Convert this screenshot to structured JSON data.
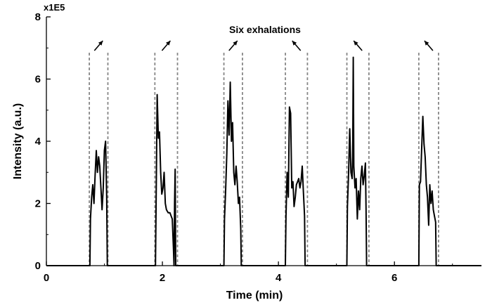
{
  "chart_data": {
    "type": "line",
    "title": "",
    "xlabel": "Time (min)",
    "ylabel": "Intensity (a.u.)",
    "y_multiplier_label": "x1E5",
    "annotation": "Six exhalations",
    "xlim": [
      0,
      7.5
    ],
    "ylim": [
      0,
      8
    ],
    "x_ticks": [
      0,
      2,
      4,
      6
    ],
    "y_ticks": [
      0,
      2,
      4,
      6,
      8
    ],
    "grid": false,
    "line_color": "#000000",
    "marker_color": "#888888",
    "exhalation_windows": [
      [
        0.74,
        1.06
      ],
      [
        1.87,
        2.26
      ],
      [
        3.06,
        3.38
      ],
      [
        4.12,
        4.5
      ],
      [
        5.18,
        5.56
      ],
      [
        6.42,
        6.76
      ]
    ],
    "arrow_directions": [
      "up-right",
      "up-right",
      "up-right",
      "up-left",
      "up-left",
      "up-left"
    ],
    "series": [
      {
        "values": [
          [
            0.0,
            0
          ],
          [
            0.75,
            0
          ],
          [
            0.76,
            1.5
          ],
          [
            0.78,
            2.2
          ],
          [
            0.8,
            2.6
          ],
          [
            0.82,
            2.0
          ],
          [
            0.84,
            2.9
          ],
          [
            0.86,
            3.7
          ],
          [
            0.88,
            3.0
          ],
          [
            0.9,
            3.5
          ],
          [
            0.92,
            3.2
          ],
          [
            0.94,
            2.5
          ],
          [
            0.96,
            1.8
          ],
          [
            0.98,
            2.5
          ],
          [
            1.0,
            3.7
          ],
          [
            1.02,
            4.0
          ],
          [
            1.04,
            2.2
          ],
          [
            1.05,
            0
          ],
          [
            1.88,
            0
          ],
          [
            1.89,
            1.8
          ],
          [
            1.9,
            3.6
          ],
          [
            1.91,
            5.5
          ],
          [
            1.93,
            4.1
          ],
          [
            1.95,
            4.3
          ],
          [
            1.97,
            3.0
          ],
          [
            1.99,
            2.3
          ],
          [
            2.01,
            2.5
          ],
          [
            2.03,
            3.0
          ],
          [
            2.05,
            2.0
          ],
          [
            2.07,
            1.8
          ],
          [
            2.1,
            1.7
          ],
          [
            2.13,
            1.7
          ],
          [
            2.15,
            1.6
          ],
          [
            2.17,
            1.5
          ],
          [
            2.19,
            0.6
          ],
          [
            2.2,
            0
          ],
          [
            2.21,
            2.0
          ],
          [
            2.22,
            3.1
          ],
          [
            2.23,
            0
          ],
          [
            3.06,
            0
          ],
          [
            3.07,
            1.5
          ],
          [
            3.09,
            2.4
          ],
          [
            3.11,
            3.6
          ],
          [
            3.13,
            5.3
          ],
          [
            3.15,
            4.2
          ],
          [
            3.17,
            5.9
          ],
          [
            3.19,
            4.0
          ],
          [
            3.21,
            4.6
          ],
          [
            3.23,
            3.0
          ],
          [
            3.25,
            2.6
          ],
          [
            3.27,
            3.2
          ],
          [
            3.29,
            2.7
          ],
          [
            3.31,
            2.0
          ],
          [
            3.33,
            2.2
          ],
          [
            3.35,
            1.2
          ],
          [
            3.36,
            0
          ],
          [
            4.12,
            0
          ],
          [
            4.13,
            1.6
          ],
          [
            4.15,
            3.0
          ],
          [
            4.17,
            2.2
          ],
          [
            4.19,
            5.1
          ],
          [
            4.21,
            4.9
          ],
          [
            4.23,
            2.5
          ],
          [
            4.25,
            2.7
          ],
          [
            4.27,
            1.9
          ],
          [
            4.29,
            2.2
          ],
          [
            4.31,
            2.6
          ],
          [
            4.33,
            2.7
          ],
          [
            4.35,
            2.8
          ],
          [
            4.37,
            2.5
          ],
          [
            4.39,
            2.7
          ],
          [
            4.41,
            3.2
          ],
          [
            4.43,
            2.4
          ],
          [
            4.45,
            1.6
          ],
          [
            4.46,
            0
          ],
          [
            5.18,
            0
          ],
          [
            5.19,
            1.9
          ],
          [
            5.21,
            3.0
          ],
          [
            5.23,
            4.4
          ],
          [
            5.25,
            3.0
          ],
          [
            5.27,
            2.8
          ],
          [
            5.28,
            3.5
          ],
          [
            5.29,
            6.7
          ],
          [
            5.3,
            3.2
          ],
          [
            5.32,
            2.5
          ],
          [
            5.34,
            2.8
          ],
          [
            5.36,
            1.5
          ],
          [
            5.38,
            2.4
          ],
          [
            5.4,
            1.8
          ],
          [
            5.42,
            2.8
          ],
          [
            5.44,
            3.2
          ],
          [
            5.46,
            2.6
          ],
          [
            5.48,
            2.9
          ],
          [
            5.5,
            3.3
          ],
          [
            5.51,
            1.8
          ],
          [
            5.52,
            0
          ],
          [
            6.42,
            0
          ],
          [
            6.43,
            2.6
          ],
          [
            6.45,
            2.7
          ],
          [
            6.47,
            3.8
          ],
          [
            6.49,
            4.8
          ],
          [
            6.51,
            3.9
          ],
          [
            6.53,
            3.5
          ],
          [
            6.55,
            2.6
          ],
          [
            6.57,
            2.2
          ],
          [
            6.59,
            1.3
          ],
          [
            6.61,
            2.6
          ],
          [
            6.63,
            2.0
          ],
          [
            6.65,
            2.4
          ],
          [
            6.67,
            1.8
          ],
          [
            6.69,
            1.6
          ],
          [
            6.71,
            1.4
          ],
          [
            6.72,
            0
          ],
          [
            7.5,
            0
          ]
        ]
      }
    ]
  }
}
